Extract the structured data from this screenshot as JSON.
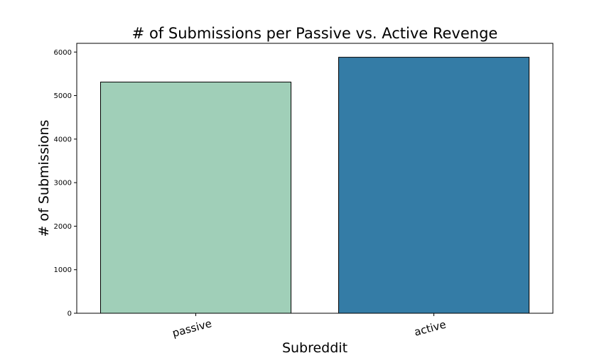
{
  "chart_data": {
    "type": "bar",
    "title": "# of Submissions per Passive vs. Active Revenge",
    "xlabel": "Subreddit",
    "ylabel": "# of Submissions",
    "categories": [
      "passive",
      "active"
    ],
    "values": [
      5310,
      5880
    ],
    "colors": [
      "#a0cfb8",
      "#347ca6"
    ],
    "ylim": [
      0,
      6200
    ],
    "yticks": [
      0,
      1000,
      2000,
      3000,
      4000,
      5000,
      6000
    ],
    "ytick_labels": [
      "0",
      "1000",
      "2000",
      "3000",
      "4000",
      "5000",
      "6000"
    ],
    "xtick_rotation": -15,
    "grid": false,
    "legend": false
  }
}
